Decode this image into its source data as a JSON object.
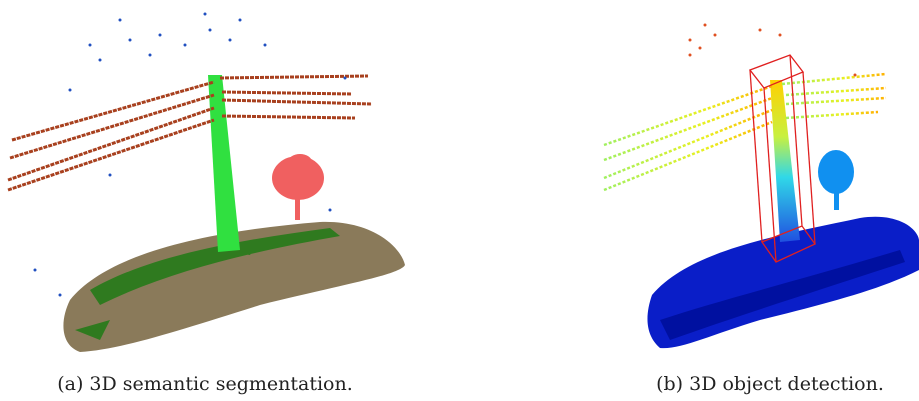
{
  "figure": {
    "panels": [
      {
        "caption": "(a) 3D semantic segmentation."
      },
      {
        "caption": "(b) 3D object detection."
      }
    ]
  }
}
